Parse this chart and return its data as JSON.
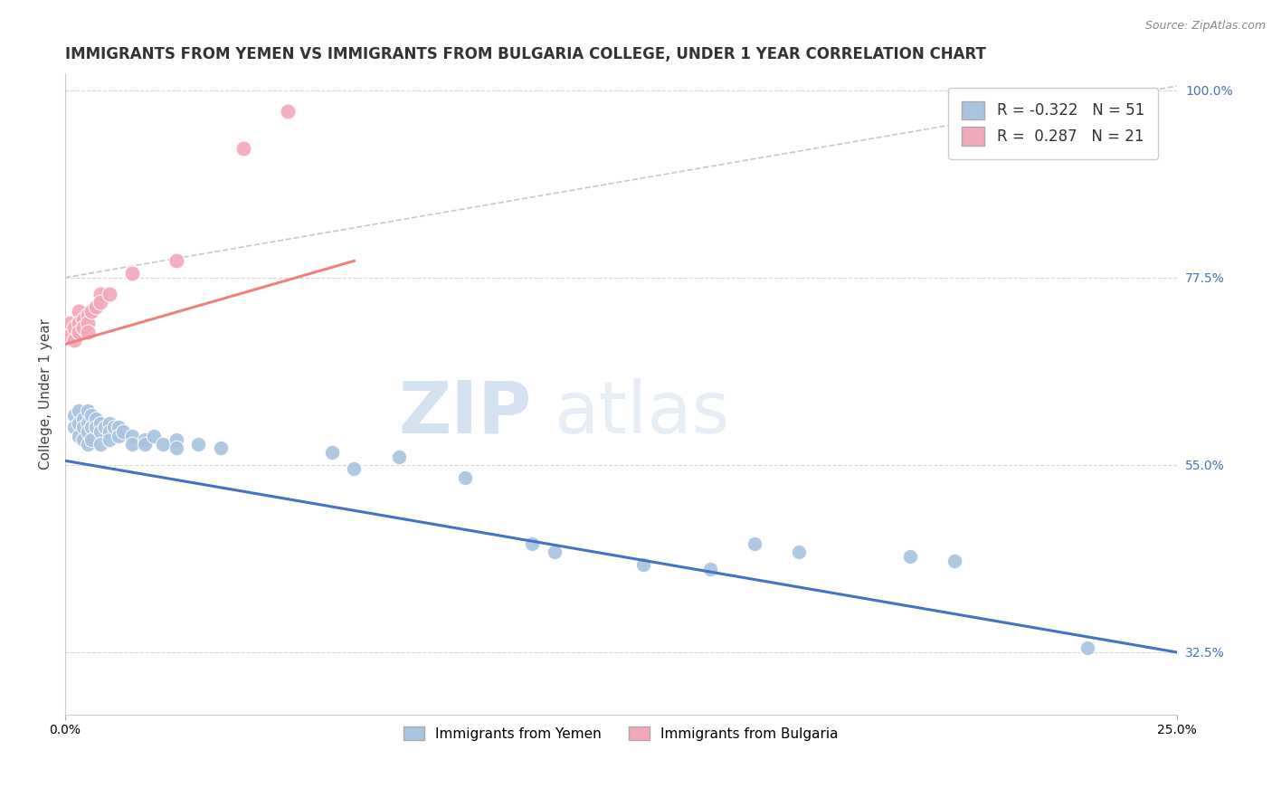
{
  "title": "IMMIGRANTS FROM YEMEN VS IMMIGRANTS FROM BULGARIA COLLEGE, UNDER 1 YEAR CORRELATION CHART",
  "source": "Source: ZipAtlas.com",
  "xlabel": "",
  "ylabel": "College, Under 1 year",
  "xlim": [
    0.0,
    0.25
  ],
  "ylim": [
    0.25,
    1.02
  ],
  "xticklabels": [
    "0.0%",
    "25.0%"
  ],
  "yticklabels_right": [
    "100.0%",
    "77.5%",
    "55.0%",
    "32.5%"
  ],
  "yticklabels_right_vals": [
    1.0,
    0.775,
    0.55,
    0.325
  ],
  "legend_r1": "R = -0.322",
  "legend_n1": "N = 51",
  "legend_r2": "R =  0.287",
  "legend_n2": "N = 21",
  "color_yemen": "#a8c4e0",
  "color_bulgaria": "#f4a7b9",
  "line_color_yemen": "#4472c4",
  "line_color_bulgaria": "#f08080",
  "watermark_zip": "ZIP",
  "watermark_atlas": "atlas",
  "grid_color": "#d8d8d8",
  "yemen_points": [
    [
      0.002,
      0.61
    ],
    [
      0.002,
      0.595
    ],
    [
      0.003,
      0.615
    ],
    [
      0.003,
      0.6
    ],
    [
      0.003,
      0.585
    ],
    [
      0.004,
      0.605
    ],
    [
      0.004,
      0.595
    ],
    [
      0.004,
      0.58
    ],
    [
      0.005,
      0.615
    ],
    [
      0.005,
      0.6
    ],
    [
      0.005,
      0.59
    ],
    [
      0.005,
      0.575
    ],
    [
      0.006,
      0.61
    ],
    [
      0.006,
      0.595
    ],
    [
      0.006,
      0.58
    ],
    [
      0.007,
      0.605
    ],
    [
      0.007,
      0.595
    ],
    [
      0.008,
      0.6
    ],
    [
      0.008,
      0.59
    ],
    [
      0.008,
      0.575
    ],
    [
      0.009,
      0.595
    ],
    [
      0.01,
      0.6
    ],
    [
      0.01,
      0.59
    ],
    [
      0.01,
      0.58
    ],
    [
      0.011,
      0.595
    ],
    [
      0.012,
      0.595
    ],
    [
      0.012,
      0.585
    ],
    [
      0.013,
      0.59
    ],
    [
      0.015,
      0.585
    ],
    [
      0.015,
      0.575
    ],
    [
      0.018,
      0.58
    ],
    [
      0.018,
      0.575
    ],
    [
      0.02,
      0.585
    ],
    [
      0.022,
      0.575
    ],
    [
      0.025,
      0.58
    ],
    [
      0.025,
      0.57
    ],
    [
      0.03,
      0.575
    ],
    [
      0.035,
      0.57
    ],
    [
      0.06,
      0.565
    ],
    [
      0.065,
      0.545
    ],
    [
      0.075,
      0.56
    ],
    [
      0.09,
      0.535
    ],
    [
      0.105,
      0.455
    ],
    [
      0.11,
      0.445
    ],
    [
      0.13,
      0.43
    ],
    [
      0.145,
      0.425
    ],
    [
      0.155,
      0.455
    ],
    [
      0.165,
      0.445
    ],
    [
      0.19,
      0.44
    ],
    [
      0.2,
      0.435
    ],
    [
      0.23,
      0.33
    ]
  ],
  "bulgaria_points": [
    [
      0.001,
      0.72
    ],
    [
      0.001,
      0.705
    ],
    [
      0.002,
      0.715
    ],
    [
      0.002,
      0.7
    ],
    [
      0.003,
      0.735
    ],
    [
      0.003,
      0.72
    ],
    [
      0.003,
      0.71
    ],
    [
      0.004,
      0.725
    ],
    [
      0.004,
      0.715
    ],
    [
      0.005,
      0.73
    ],
    [
      0.005,
      0.72
    ],
    [
      0.005,
      0.71
    ],
    [
      0.006,
      0.735
    ],
    [
      0.007,
      0.74
    ],
    [
      0.008,
      0.755
    ],
    [
      0.008,
      0.745
    ],
    [
      0.01,
      0.755
    ],
    [
      0.015,
      0.78
    ],
    [
      0.025,
      0.795
    ],
    [
      0.04,
      0.93
    ],
    [
      0.05,
      0.975
    ]
  ],
  "yemen_trend_x": [
    0.0,
    0.25
  ],
  "yemen_trend_y": [
    0.555,
    0.325
  ],
  "bulgaria_trend_x": [
    0.0,
    0.065
  ],
  "bulgaria_trend_y": [
    0.695,
    0.795
  ],
  "dashed_line_x": [
    0.0,
    0.25
  ],
  "dashed_line_y": [
    0.775,
    1.005
  ]
}
